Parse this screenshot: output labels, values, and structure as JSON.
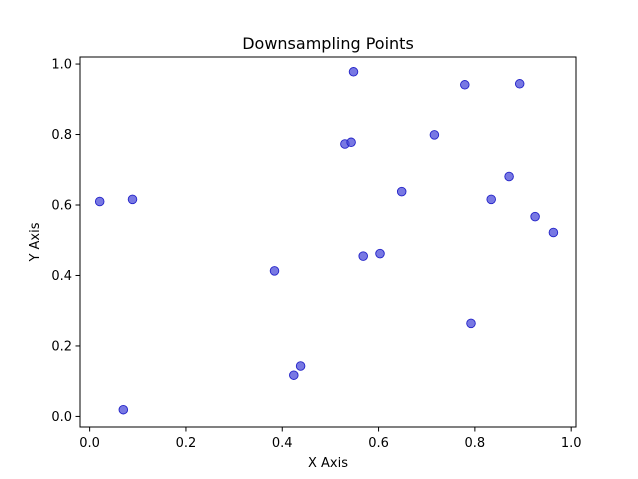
{
  "chart_data": {
    "type": "scatter",
    "title": "Downsampling Points",
    "xlabel": "X Axis",
    "ylabel": "Y Axis",
    "xlim": [
      -0.02,
      1.01
    ],
    "ylim": [
      -0.03,
      1.02
    ],
    "xticks": [
      0.0,
      0.2,
      0.4,
      0.6,
      0.8,
      1.0
    ],
    "xtick_labels": [
      "0.0",
      "0.2",
      "0.4",
      "0.6",
      "0.8",
      "1.0"
    ],
    "yticks": [
      0.0,
      0.2,
      0.4,
      0.6,
      0.8,
      1.0
    ],
    "ytick_labels": [
      "0.0",
      "0.2",
      "0.4",
      "0.6",
      "0.8",
      "1.0"
    ],
    "grid": false,
    "marker_color": "#4b4bd9",
    "marker_edge_color": "#2222c8",
    "points": [
      {
        "x": 0.021,
        "y": 0.61
      },
      {
        "x": 0.07,
        "y": 0.019
      },
      {
        "x": 0.089,
        "y": 0.616
      },
      {
        "x": 0.384,
        "y": 0.413
      },
      {
        "x": 0.424,
        "y": 0.117
      },
      {
        "x": 0.438,
        "y": 0.143
      },
      {
        "x": 0.53,
        "y": 0.773
      },
      {
        "x": 0.543,
        "y": 0.778
      },
      {
        "x": 0.548,
        "y": 0.978
      },
      {
        "x": 0.568,
        "y": 0.455
      },
      {
        "x": 0.603,
        "y": 0.462
      },
      {
        "x": 0.648,
        "y": 0.638
      },
      {
        "x": 0.716,
        "y": 0.799
      },
      {
        "x": 0.779,
        "y": 0.941
      },
      {
        "x": 0.792,
        "y": 0.264
      },
      {
        "x": 0.834,
        "y": 0.616
      },
      {
        "x": 0.871,
        "y": 0.681
      },
      {
        "x": 0.893,
        "y": 0.944
      },
      {
        "x": 0.925,
        "y": 0.567
      },
      {
        "x": 0.963,
        "y": 0.522
      }
    ]
  }
}
